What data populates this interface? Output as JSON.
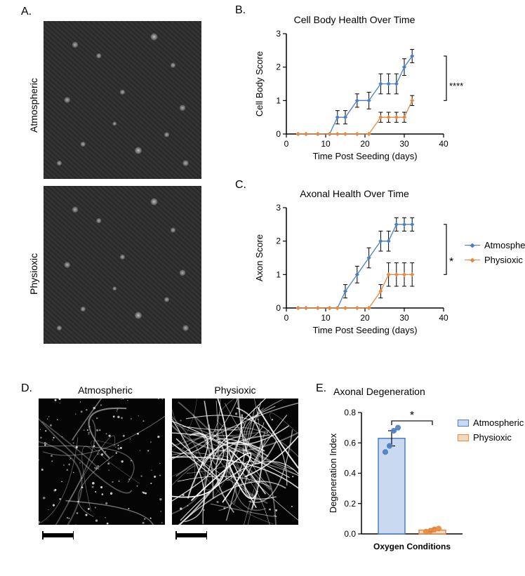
{
  "colors": {
    "atmospheric": "#4a7fc5",
    "atmospheric_fill": "#c9d9ef",
    "physioxic": "#e58a3e",
    "physioxic_fill": "#f3d9c2",
    "axis": "#000000",
    "bg": "#ffffff"
  },
  "panelA": {
    "label": "A.",
    "top_caption": "Atmospheric",
    "bottom_caption": "Physioxic"
  },
  "panelB": {
    "label": "B.",
    "title": "Cell Body Health Over Time",
    "ylabel": "Cell Body Score",
    "xlabel": "Time Post Seeding (days)",
    "ylim": [
      0,
      3
    ],
    "ytick_step": 1,
    "xlim": [
      0,
      40
    ],
    "xtick_step": 10,
    "significance": "****",
    "series": {
      "atmospheric": {
        "x": [
          3,
          5,
          8,
          11,
          13,
          15,
          18,
          21,
          24,
          26,
          28,
          30,
          32
        ],
        "y": [
          0,
          0,
          0,
          0,
          0.5,
          0.5,
          1,
          1,
          1.5,
          1.5,
          1.5,
          2,
          2.33
        ],
        "err": [
          0,
          0,
          0,
          0,
          0.2,
          0.2,
          0.2,
          0.25,
          0.3,
          0.3,
          0.3,
          0.25,
          0.2
        ]
      },
      "physioxic": {
        "x": [
          3,
          5,
          8,
          11,
          13,
          15,
          18,
          21,
          24,
          26,
          28,
          30,
          32
        ],
        "y": [
          0,
          0,
          0,
          0,
          0,
          0,
          0,
          0,
          0.5,
          0.5,
          0.5,
          0.5,
          1
        ],
        "err": [
          0,
          0,
          0,
          0,
          0,
          0,
          0,
          0,
          0.15,
          0.15,
          0.15,
          0.15,
          0.15
        ]
      }
    }
  },
  "panelC": {
    "label": "C.",
    "title": "Axonal Health Over Time",
    "ylabel": "Axon Score",
    "xlabel": "Time Post Seeding (days)",
    "ylim": [
      0,
      3
    ],
    "ytick_step": 1,
    "xlim": [
      0,
      40
    ],
    "xtick_step": 10,
    "significance": "*",
    "series": {
      "atmospheric": {
        "x": [
          3,
          5,
          8,
          11,
          13,
          15,
          18,
          21,
          24,
          26,
          28,
          30,
          32
        ],
        "y": [
          0,
          0,
          0,
          0,
          0,
          0.5,
          1,
          1.5,
          2,
          2,
          2.5,
          2.5,
          2.5
        ],
        "err": [
          0,
          0,
          0,
          0,
          0,
          0.2,
          0.25,
          0.3,
          0.3,
          0.3,
          0.2,
          0.2,
          0.2
        ]
      },
      "physioxic": {
        "x": [
          3,
          5,
          8,
          11,
          13,
          15,
          18,
          21,
          24,
          26,
          28,
          30,
          32
        ],
        "y": [
          0,
          0,
          0,
          0,
          0,
          0,
          0,
          0,
          0.5,
          1,
          1,
          1,
          1
        ],
        "err": [
          0,
          0,
          0,
          0,
          0,
          0,
          0,
          0,
          0.2,
          0.35,
          0.35,
          0.35,
          0.35
        ]
      }
    }
  },
  "legendBC": {
    "items": [
      "Atmospheric",
      "Physioxic"
    ]
  },
  "panelD": {
    "label": "D.",
    "left_caption": "Atmospheric",
    "right_caption": "Physioxic"
  },
  "panelE": {
    "label": "E.",
    "title": "Axonal Degeneration",
    "ylabel": "Degeneration Index",
    "xlabel": "Oxygen Conditions",
    "ylim": [
      0,
      0.8
    ],
    "ytick_step": 0.2,
    "significance": "*",
    "bars": {
      "atmospheric": {
        "mean": 0.63,
        "err": 0.05,
        "points": [
          0.54,
          0.58,
          0.68,
          0.7
        ]
      },
      "physioxic": {
        "mean": 0.025,
        "err": 0.01,
        "points": [
          0.015,
          0.02,
          0.03,
          0.035
        ]
      }
    },
    "legend": [
      "Atmospheric",
      "Physioxic"
    ]
  }
}
